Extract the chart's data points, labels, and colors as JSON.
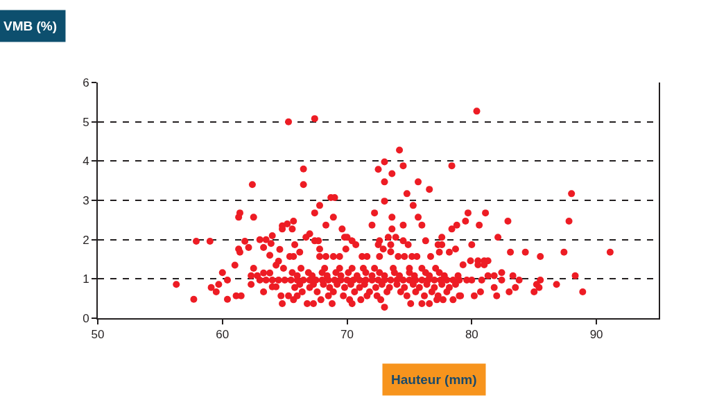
{
  "chart_data": {
    "type": "scatter",
    "ylabel": "VMB (%)",
    "xlabel": "Hauteur (mm)",
    "xlim": [
      50,
      95
    ],
    "xticks": [
      50,
      60,
      70,
      80,
      90
    ],
    "ylim": [
      0,
      6
    ],
    "yticks": [
      0,
      1,
      2,
      3,
      4,
      5,
      6
    ],
    "grid": "y",
    "marker": "circle",
    "series": [
      {
        "color": "#ed1c24",
        "x": [
          56.3,
          57.7,
          57.9,
          59.0,
          59.1,
          59.5,
          59.7,
          60.0,
          60.4,
          60.4,
          61.0,
          61.1,
          61.5,
          61.3,
          61.4,
          61.3,
          61.4,
          61.8,
          62.1,
          62.4,
          62.5,
          62.5,
          62.3,
          62.8,
          62.3,
          63.0,
          63.5,
          63.3,
          63.9,
          64.0,
          63.8,
          64.3,
          64.5,
          64.6,
          64.8,
          65.2,
          64.9,
          63.3,
          63.8,
          63.3,
          64.8,
          63.0,
          63.5,
          64.0,
          64.5,
          65.0,
          64.0,
          64.3,
          64.7,
          65.3,
          65.3,
          67.4,
          66.5,
          66.5,
          74.2,
          73.0,
          72.5,
          73.0,
          73.6,
          74.5,
          78.4,
          75.7,
          76.6,
          74.8,
          73.0,
          68.7,
          69.0,
          67.8,
          67.4,
          68.9,
          68.3,
          65.7,
          64.8,
          65.6,
          66.7,
          67.0,
          67.4,
          67.7,
          67.8,
          69.6,
          69.8,
          70.0,
          70.4,
          70.7,
          69.9,
          72.2,
          72.0,
          73.6,
          73.6,
          73.3,
          73.9,
          74.5,
          75.3,
          75.7,
          76.0,
          74.5,
          74.9,
          72.6,
          72.5,
          72.9,
          73.5,
          73.5,
          76.3,
          78.4,
          78.8,
          79.5,
          79.7,
          77.6,
          77.3,
          77.6,
          77.4,
          78.2,
          78.7,
          80.0,
          65.8,
          66.2,
          65.4,
          65.7,
          65.7,
          66.8,
          67.3,
          67.9,
          68.8,
          70.2,
          70.4,
          71.1,
          73.0,
          72.7,
          75.1,
          76.0,
          76.6,
          77.2,
          77.7,
          78.5,
          79.0,
          67.8,
          68.3,
          68.9,
          69.4,
          71.2,
          71.6,
          72.6,
          74.1,
          74.6,
          75.2,
          75.6,
          76.7,
          66.3,
          68.2,
          69.4,
          70.4,
          71.3,
          72.2,
          73.7,
          75.0,
          76.0,
          77.1,
          80.4,
          88.0,
          87.8,
          81.1,
          80.6,
          82.9,
          82.1,
          83.1,
          84.3,
          85.5,
          87.4,
          91.1,
          79.9,
          80.5,
          81.0,
          81.3,
          80.5,
          81.0,
          79.3,
          82.4,
          83.3,
          81.3,
          81.8,
          83.8,
          82.4,
          85.5,
          88.3,
          85.2,
          86.8,
          85.4,
          83.5,
          81.8,
          85.0,
          83.0,
          80.7,
          88.9,
          82.0,
          80.2,
          79.1,
          79.6,
          80.0,
          80.8,
          65.5,
          66.0,
          66.5,
          67.0,
          67.5,
          68.0,
          68.5,
          69.0,
          69.5,
          70.0,
          70.5,
          71.0,
          71.5,
          72.0,
          72.5,
          73.0,
          73.5,
          74.0,
          74.5,
          75.0,
          75.5,
          76.0,
          76.5,
          77.0,
          77.5,
          78.0,
          78.5,
          79.0,
          66.2,
          67.3,
          68.1,
          69.2,
          70.3,
          71.4,
          72.8,
          74.0,
          75.3,
          76.4,
          77.6,
          78.7,
          65.8,
          67.0,
          68.6,
          69.8,
          71.0,
          72.3,
          73.4,
          74.6,
          75.8,
          77.0,
          78.2,
          66.4,
          67.6,
          68.9,
          70.6,
          71.8,
          73.2,
          74.3,
          75.5,
          76.8,
          78.0,
          66.0,
          67.2,
          68.4,
          69.5,
          70.8,
          72.0,
          73.0,
          74.2,
          75.4,
          76.6,
          77.8,
          78.9,
          65.6,
          66.9,
          68.0,
          69.1,
          70.1,
          71.5,
          72.6,
          73.8,
          75.0,
          76.3,
          77.4,
          66.0,
          68.5,
          69.7,
          71.6,
          72.4,
          74.8,
          76.2,
          77.3
        ],
        "values": [
          0.86,
          0.48,
          1.96,
          1.96,
          0.78,
          0.67,
          0.86,
          1.16,
          0.97,
          0.48,
          1.35,
          0.57,
          0.57,
          2.57,
          2.68,
          1.76,
          1.68,
          1.96,
          1.8,
          3.4,
          2.57,
          1.27,
          1.08,
          1.08,
          0.86,
          2.0,
          2.0,
          1.8,
          1.9,
          2.1,
          1.6,
          1.35,
          1.45,
          1.75,
          2.35,
          2.4,
          1.27,
          1.15,
          1.15,
          0.67,
          0.37,
          0.97,
          0.97,
          0.97,
          0.97,
          0.97,
          0.8,
          0.8,
          0.57,
          0.57,
          5.0,
          5.08,
          3.8,
          3.4,
          4.28,
          3.98,
          3.79,
          3.47,
          3.68,
          3.88,
          3.88,
          3.47,
          3.28,
          3.17,
          2.98,
          3.07,
          3.07,
          2.87,
          2.68,
          2.57,
          2.37,
          2.47,
          2.27,
          2.27,
          2.06,
          2.15,
          1.97,
          1.97,
          1.76,
          2.27,
          2.06,
          2.06,
          1.97,
          1.87,
          1.76,
          2.68,
          2.37,
          2.57,
          2.27,
          2.06,
          2.06,
          2.37,
          2.87,
          2.57,
          2.37,
          1.97,
          1.87,
          1.97,
          1.87,
          1.76,
          1.87,
          1.69,
          1.97,
          2.27,
          2.37,
          2.47,
          2.68,
          2.06,
          1.87,
          1.87,
          1.68,
          1.68,
          1.76,
          1.87,
          1.87,
          1.68,
          1.57,
          1.57,
          0.47,
          0.37,
          0.37,
          0.47,
          0.37,
          0.47,
          0.37,
          0.47,
          0.28,
          0.47,
          0.37,
          0.37,
          0.37,
          0.47,
          0.47,
          0.47,
          0.57,
          1.57,
          1.57,
          1.57,
          1.57,
          1.57,
          1.57,
          1.57,
          1.57,
          1.57,
          1.57,
          1.57,
          1.57,
          1.27,
          1.27,
          1.27,
          1.27,
          1.27,
          1.27,
          1.27,
          1.27,
          1.27,
          1.27,
          5.27,
          3.17,
          2.47,
          2.68,
          2.37,
          2.47,
          2.06,
          1.68,
          1.68,
          1.57,
          1.68,
          1.68,
          1.46,
          1.46,
          1.46,
          1.46,
          1.36,
          1.36,
          1.36,
          1.16,
          1.08,
          1.08,
          1.08,
          0.97,
          0.97,
          0.97,
          1.08,
          0.86,
          0.86,
          0.78,
          0.78,
          0.78,
          0.67,
          0.67,
          0.67,
          0.67,
          0.57,
          0.57,
          0.57,
          0.97,
          0.97,
          0.97,
          0.97,
          0.97,
          0.97,
          0.97,
          0.97,
          0.97,
          0.97,
          0.97,
          0.97,
          0.97,
          0.97,
          0.97,
          0.97,
          0.97,
          0.97,
          0.97,
          0.97,
          0.97,
          0.97,
          0.97,
          0.97,
          0.97,
          0.97,
          0.97,
          0.97,
          0.97,
          0.97,
          0.97,
          0.86,
          0.86,
          0.86,
          0.86,
          0.86,
          0.86,
          0.86,
          0.86,
          0.86,
          0.86,
          0.86,
          0.86,
          0.78,
          0.78,
          0.78,
          0.78,
          0.78,
          0.78,
          0.78,
          0.78,
          0.78,
          0.78,
          0.78,
          0.67,
          0.67,
          0.67,
          0.67,
          0.67,
          0.67,
          0.67,
          0.67,
          0.67,
          0.67,
          1.08,
          1.08,
          1.08,
          1.08,
          1.08,
          1.08,
          1.08,
          1.08,
          1.08,
          1.08,
          1.08,
          1.08,
          1.16,
          1.16,
          1.16,
          1.16,
          1.16,
          1.16,
          1.16,
          1.16,
          1.16,
          1.16,
          1.16,
          0.57,
          0.57,
          0.57,
          0.57,
          0.57,
          0.57,
          0.57,
          0.57
        ]
      }
    ]
  }
}
